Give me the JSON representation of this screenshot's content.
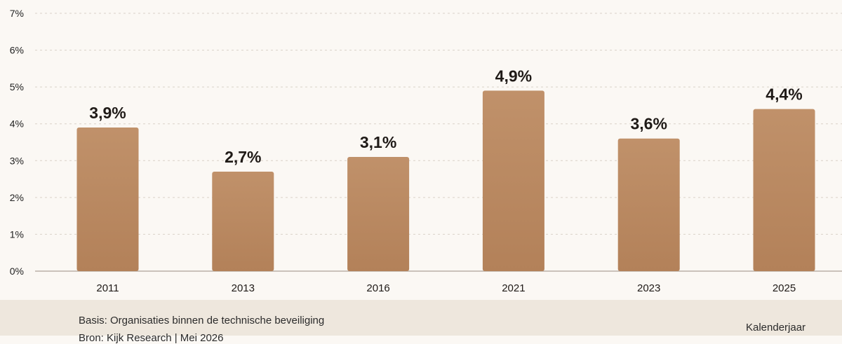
{
  "chart_data": {
    "type": "bar",
    "categories": [
      "2011",
      "2013",
      "2016",
      "2021",
      "2023",
      "2025"
    ],
    "values": [
      3.9,
      2.7,
      3.1,
      4.9,
      3.6,
      4.4
    ],
    "value_labels": [
      "3,9%",
      "2,7%",
      "3,1%",
      "4,9%",
      "3,6%",
      "4,4%"
    ],
    "y_ticks": [
      "0%",
      "1%",
      "2%",
      "3%",
      "4%",
      "5%",
      "6%",
      "7%"
    ],
    "ylim": [
      0,
      7
    ],
    "xlabel": "Kalenderjaar",
    "ylabel": "",
    "title": "",
    "grid": true,
    "bar_color": "#b98a62"
  },
  "footer": {
    "basis": "Basis: Organisaties binnen de technische beveiliging",
    "source": "Bron: Kijk Research | Mei 2026"
  }
}
